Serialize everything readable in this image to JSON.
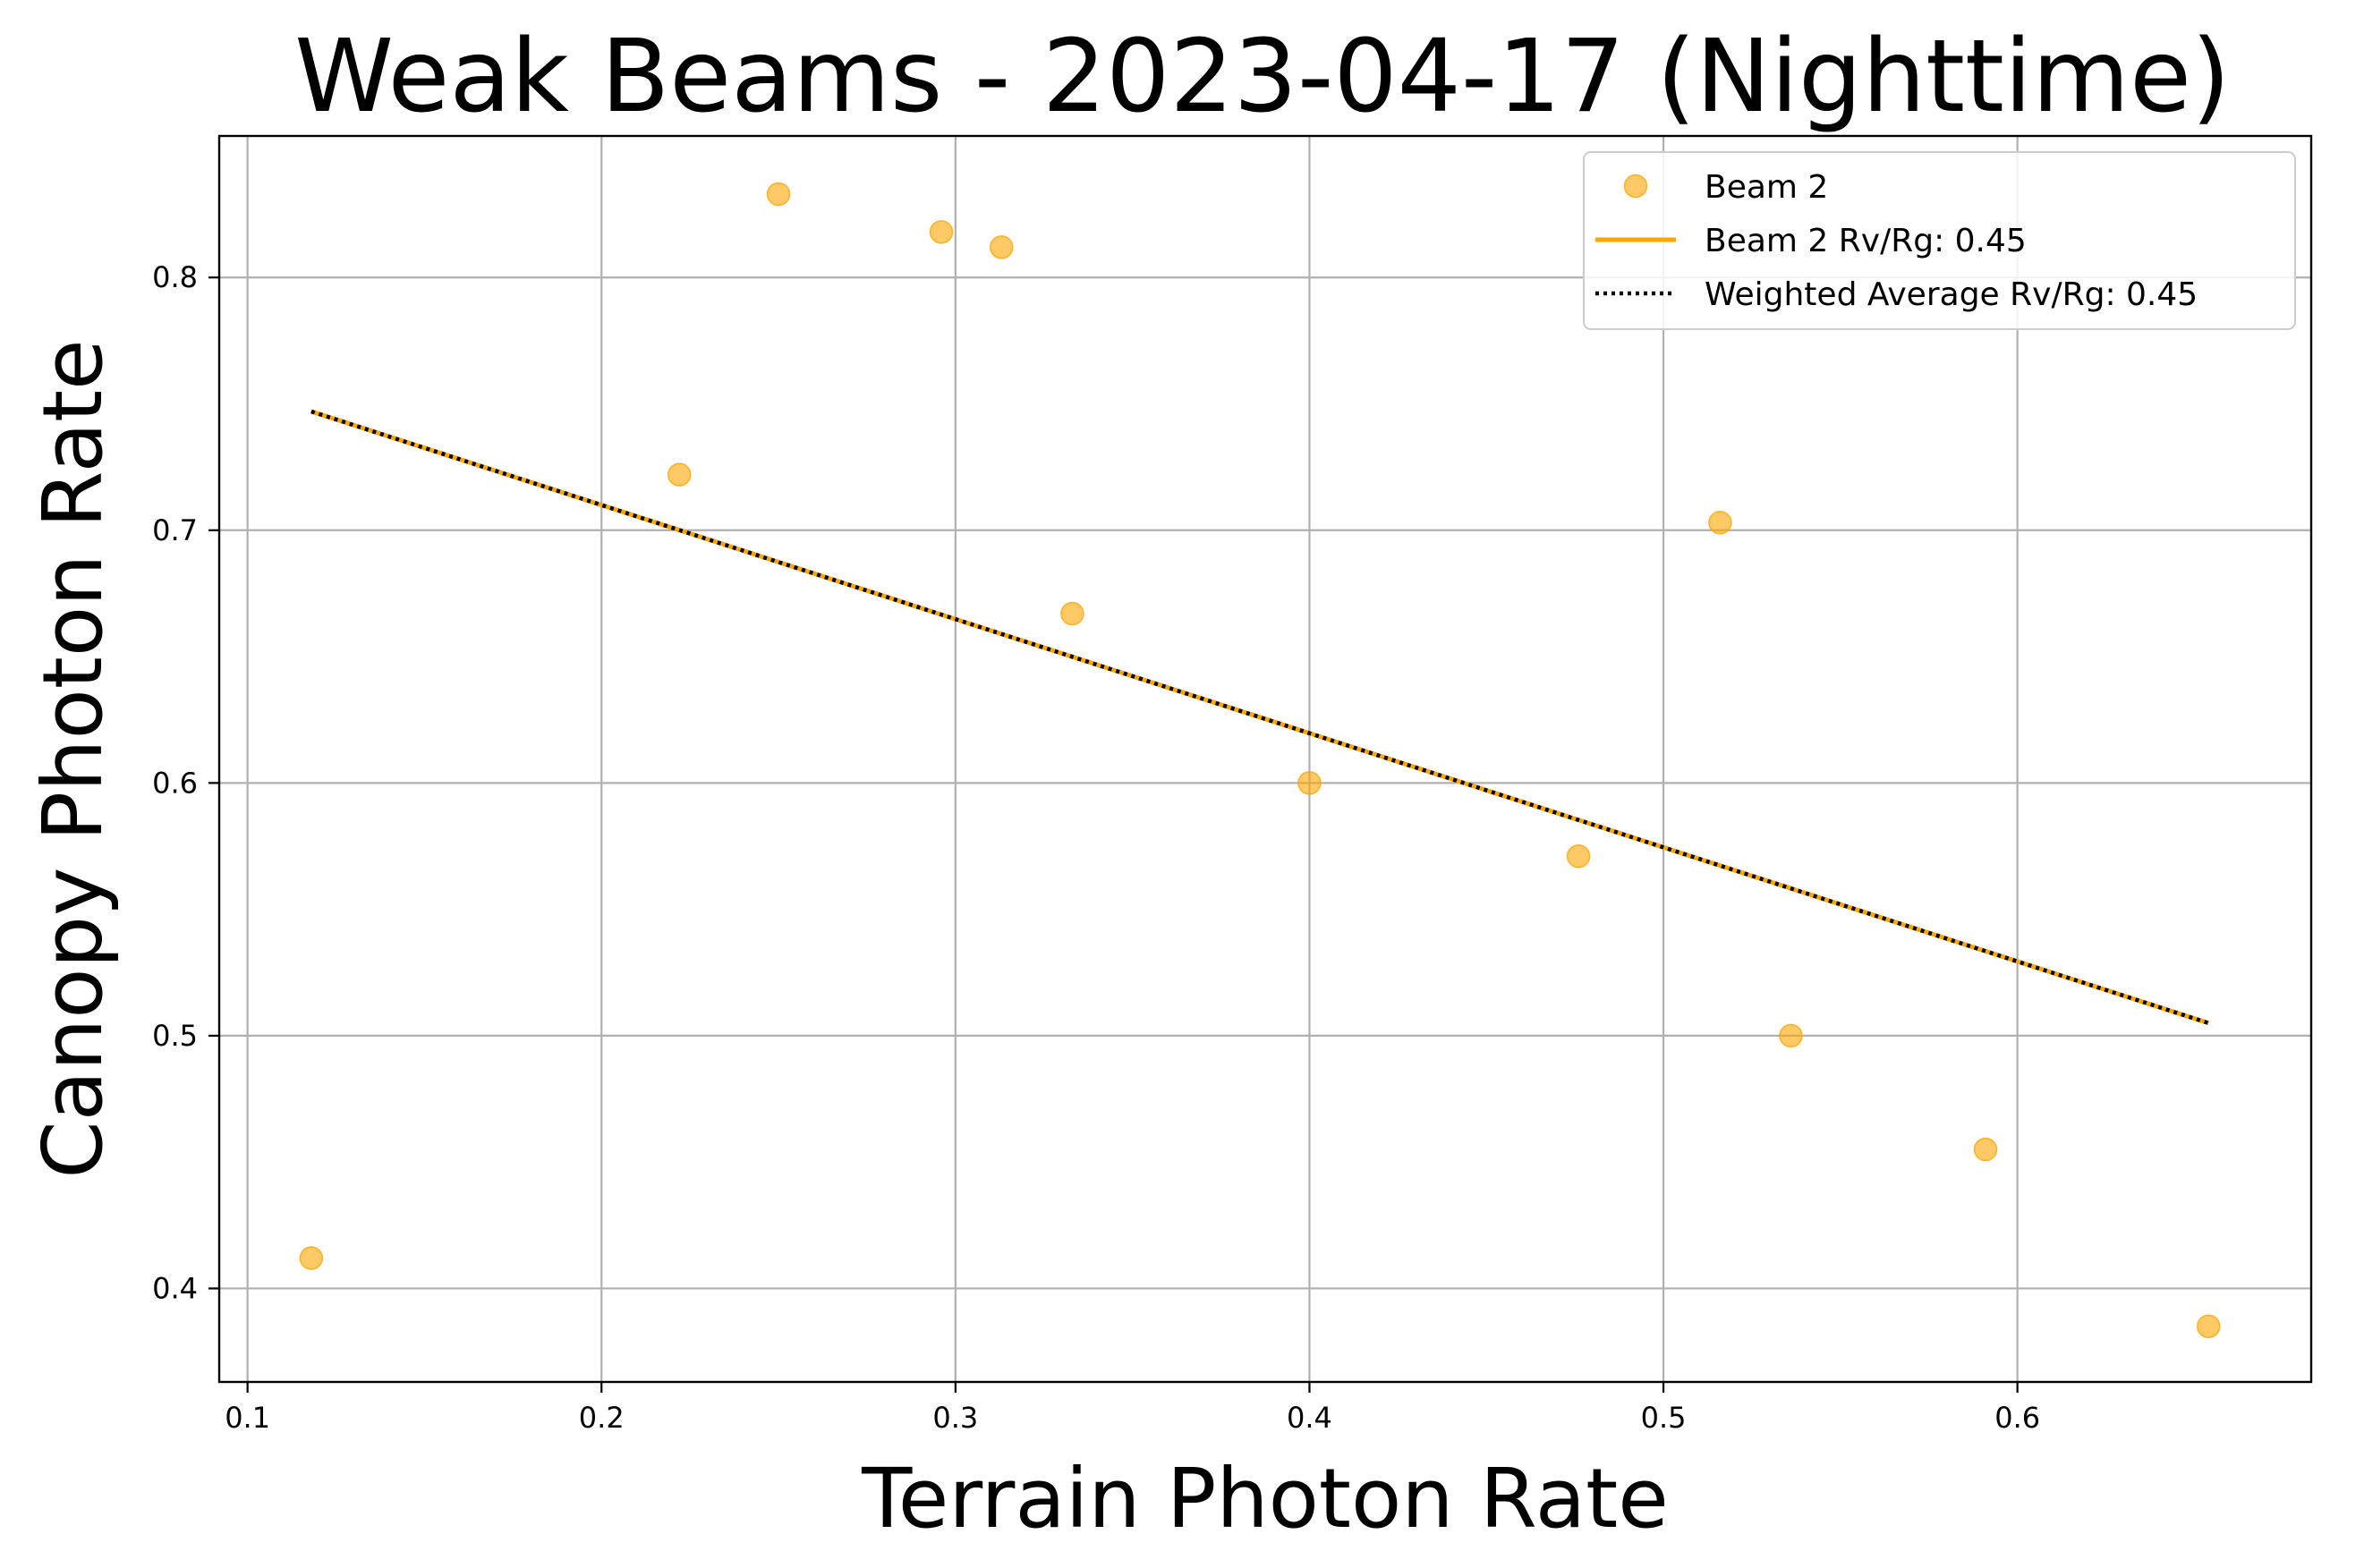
{
  "chart_data": {
    "type": "scatter",
    "title": "Weak Beams - 2023-04-17 (Nighttime)",
    "xlabel": "Terrain Photon Rate",
    "ylabel": "Canopy Photon Rate",
    "xlim": [
      0.092,
      0.683
    ],
    "ylim": [
      0.363,
      0.856
    ],
    "xticks": [
      0.1,
      0.2,
      0.3,
      0.4,
      0.5,
      0.6
    ],
    "yticks": [
      0.4,
      0.5,
      0.6,
      0.7,
      0.8
    ],
    "grid": true,
    "legend_position": "top-right",
    "series": [
      {
        "name": "Beam 2",
        "kind": "scatter",
        "color": "#FFA500",
        "points": [
          [
            0.118,
            0.412
          ],
          [
            0.222,
            0.722
          ],
          [
            0.25,
            0.833
          ],
          [
            0.296,
            0.818
          ],
          [
            0.313,
            0.812
          ],
          [
            0.333,
            0.667
          ],
          [
            0.4,
            0.6
          ],
          [
            0.476,
            0.571
          ],
          [
            0.516,
            0.703
          ],
          [
            0.536,
            0.5
          ],
          [
            0.591,
            0.455
          ],
          [
            0.654,
            0.385
          ]
        ]
      },
      {
        "name": "Beam 2 Rv/Rg: 0.45",
        "kind": "line",
        "color": "#FFA500",
        "x": [
          0.118,
          0.654
        ],
        "y": [
          0.747,
          0.505
        ]
      },
      {
        "name": "Weighted Average Rv/Rg: 0.45",
        "kind": "line-dotted",
        "color": "#000000",
        "x": [
          0.118,
          0.654
        ],
        "y": [
          0.747,
          0.505
        ]
      }
    ]
  }
}
